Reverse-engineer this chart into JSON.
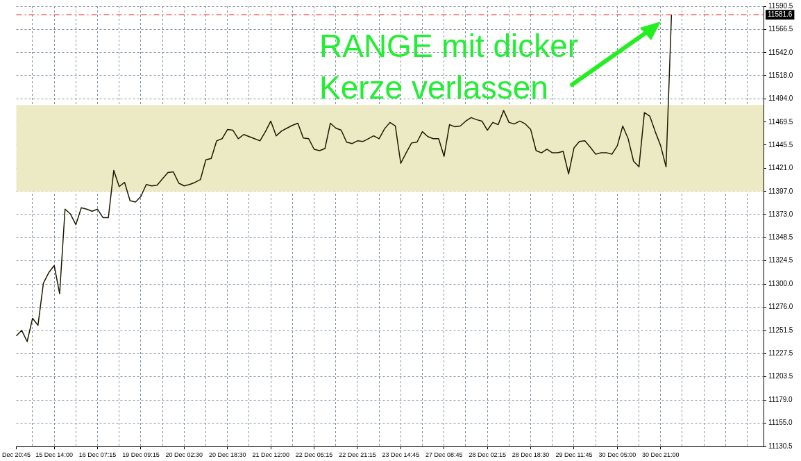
{
  "chart_data": {
    "type": "line",
    "categories": [
      "Dec 20:45",
      null,
      null,
      null,
      null,
      null,
      null,
      "15 Dec 14:00",
      null,
      null,
      null,
      null,
      null,
      null,
      null,
      "16 Dec 07:15",
      null,
      null,
      null,
      null,
      null,
      null,
      null,
      "19 Dec 09:15",
      null,
      null,
      null,
      null,
      null,
      null,
      null,
      "20 Dec 02:30",
      null,
      null,
      null,
      null,
      null,
      null,
      null,
      "20 Dec 18:30",
      null,
      null,
      null,
      null,
      null,
      null,
      null,
      "21 Dec 12:00",
      null,
      null,
      null,
      null,
      null,
      null,
      null,
      "22 Dec 05:15",
      null,
      null,
      null,
      null,
      null,
      null,
      null,
      "22 Dec 21:15",
      null,
      null,
      null,
      null,
      null,
      null,
      null,
      "23 Dec 14:45",
      null,
      null,
      null,
      null,
      null,
      null,
      null,
      "27 Dec 08:45",
      null,
      null,
      null,
      null,
      null,
      null,
      null,
      "28 Dec 02:15",
      null,
      null,
      null,
      null,
      null,
      null,
      null,
      "28 Dec 18:30",
      null,
      null,
      null,
      null,
      null,
      null,
      null,
      "29 Dec 11:45",
      null,
      null,
      null,
      null,
      null,
      null,
      null,
      "30 Dec 05:00",
      null,
      null,
      null,
      null,
      null,
      null,
      null,
      "30 Dec 21:00",
      null,
      null,
      null,
      null,
      null,
      null,
      null,
      null,
      null,
      null,
      null,
      null,
      null,
      null,
      null,
      null,
      null,
      null,
      null
    ],
    "series": [
      {
        "color": "#1a1a00",
        "values": [
          11246.1,
          11251.9,
          11240.2,
          11264.5,
          11257.1,
          11301.2,
          11312.3,
          11319.6,
          11290.2,
          11378.5,
          11373.4,
          11362.3,
          11380.0,
          11378.5,
          11376.3,
          11378.5,
          11369.7,
          11369.7,
          11419.0,
          11402.1,
          11406.5,
          11387.4,
          11385.9,
          11391.8,
          11404.3,
          11402.8,
          11403.6,
          11410.2,
          11416.8,
          11417.5,
          11405.7,
          11402.8,
          11404.3,
          11406.5,
          11409.4,
          11430.0,
          11431.5,
          11449.9,
          11452.1,
          11461.7,
          11461.0,
          11452.1,
          11456.5,
          11454.3,
          11452.1,
          11449.9,
          11459.5,
          11470.5,
          11455.1,
          11460.2,
          11463.2,
          11466.1,
          11468.3,
          11452.9,
          11452.1,
          11441.1,
          11439.6,
          11441.8,
          11468.3,
          11463.2,
          11461.0,
          11448.5,
          11447.0,
          11449.9,
          11449.2,
          11452.1,
          11455.1,
          11452.1,
          11462.4,
          11469.1,
          11465.4,
          11426.4,
          11437.4,
          11447.7,
          11448.5,
          11459.5,
          11454.3,
          11452.1,
          11452.1,
          11433.7,
          11466.8,
          11464.6,
          11465.4,
          11470.5,
          11474.2,
          11472.0,
          11470.5,
          11461.0,
          11469.1,
          11466.8,
          11481.6,
          11469.1,
          11467.6,
          11470.5,
          11467.6,
          11461.7,
          11439.6,
          11437.4,
          11441.1,
          11437.4,
          11437.4,
          11438.9,
          11415.3,
          11442.6,
          11449.2,
          11449.9,
          11443.3,
          11435.9,
          11437.4,
          11437.4,
          11435.9,
          11444.8,
          11465.4,
          11452.1,
          11428.6,
          11422.7,
          11479.4,
          11475.7,
          11459.5,
          11444.8,
          11422.7,
          11581.6,
          null,
          null,
          null,
          null,
          null,
          null,
          null,
          null,
          null,
          null,
          null,
          null,
          null,
          null,
          null,
          null,
          null
        ]
      }
    ],
    "ylim": [
      11130.5,
      11590.5
    ],
    "yticks": [
      11130.5,
      {
        "value": 11155,
        "label": "11155.0"
      },
      {
        "value": 11179,
        "label": "11179.0"
      },
      11203.5,
      11227.5,
      11251.5,
      {
        "value": 11276,
        "label": "11276.0"
      },
      {
        "value": 11300,
        "label": "11300.0"
      },
      11324.5,
      11348.5,
      {
        "value": 11373,
        "label": "11373.0"
      },
      {
        "value": 11397,
        "label": "11397.0"
      },
      {
        "value": 11421,
        "label": "11421.0"
      },
      11445.5,
      11469.5,
      {
        "value": 11494,
        "label": "11494.0"
      },
      {
        "value": 11518,
        "label": "11518.0"
      },
      {
        "value": 11542,
        "label": "11542.0"
      },
      11566.5,
      11590.5
    ],
    "grid": true,
    "ref_lines": [
      {
        "axis": "y",
        "value": 11581.6,
        "label": "11581.6",
        "color": "#ff0000",
        "line_style": "dashed"
      }
    ],
    "bands": [
      {
        "axis": "y",
        "from": 11397,
        "to": 11487.4,
        "color": "#eceac4"
      }
    ],
    "annotations": [
      "RANGE mit dicker Kerze verlassen"
    ]
  }
}
